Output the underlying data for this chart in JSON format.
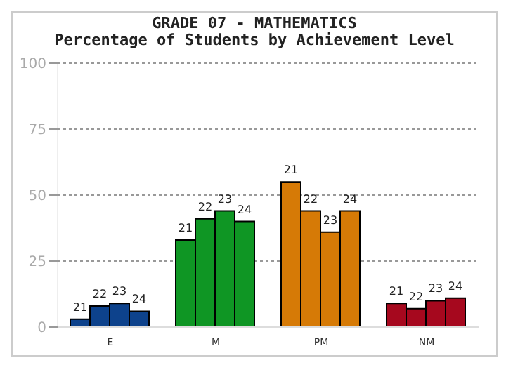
{
  "chart_data": {
    "type": "bar",
    "title": "GRADE 07 - MATHEMATICS",
    "subtitle": "Percentage of Students by Achievement Level",
    "categories": [
      "E",
      "M",
      "PM",
      "NM"
    ],
    "series": [
      {
        "name": "21",
        "colors": [
          "#0d428c",
          "#0f9624",
          "#d67a06",
          "#a6081e"
        ],
        "values": [
          3,
          33,
          55,
          9
        ]
      },
      {
        "name": "22",
        "colors": [
          "#0d428c",
          "#0f9624",
          "#d67a06",
          "#a6081e"
        ],
        "values": [
          8,
          41,
          44,
          7
        ]
      },
      {
        "name": "23",
        "colors": [
          "#0d428c",
          "#0f9624",
          "#d67a06",
          "#a6081e"
        ],
        "values": [
          9,
          44,
          36,
          10
        ]
      },
      {
        "name": "24",
        "colors": [
          "#0d428c",
          "#0f9624",
          "#d67a06",
          "#a6081e"
        ],
        "values": [
          6,
          40,
          44,
          11
        ]
      }
    ],
    "ylim": [
      0,
      100
    ],
    "yticks": [
      0,
      25,
      50,
      75,
      100
    ],
    "grid": "y",
    "legend": false
  }
}
